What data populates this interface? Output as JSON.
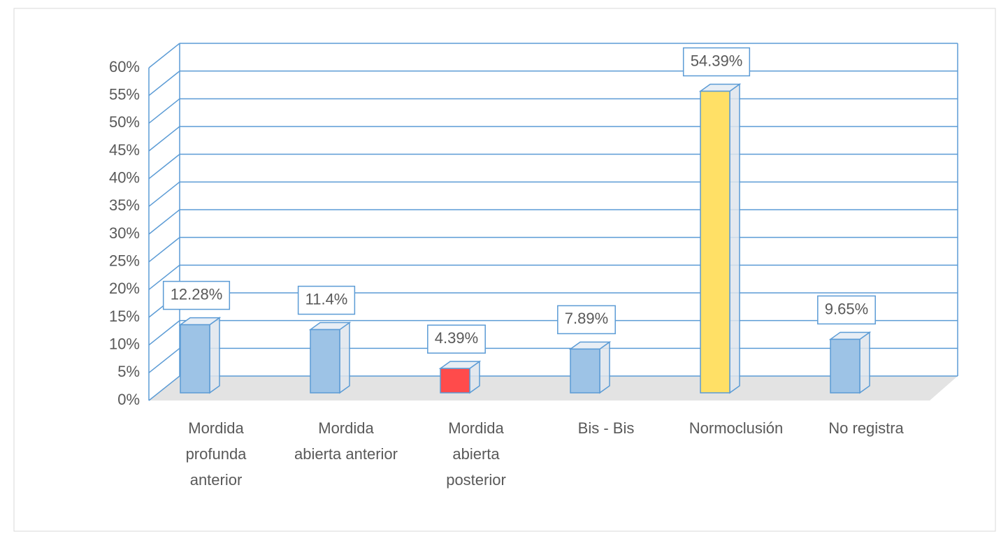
{
  "chart_data": {
    "type": "bar3d",
    "categories": [
      "Mordida profunda anterior",
      "Mordida abierta anterior",
      "Mordida abierta posterior",
      "Bis - Bis",
      "Normoclusión",
      "No registra"
    ],
    "values": [
      12.28,
      11.4,
      4.39,
      7.89,
      54.39,
      9.65
    ],
    "value_labels": [
      "12.28%",
      "11.4%",
      "4.39%",
      "7.89%",
      "54.39%",
      "9.65%"
    ],
    "colors": [
      "#9dc3e6",
      "#9dc3e6",
      "#ff4b4b",
      "#9dc3e6",
      "#ffe066",
      "#9dc3e6"
    ],
    "ylim": [
      0,
      60
    ],
    "yticks": [
      {
        "value": 0,
        "label": "0%"
      },
      {
        "value": 5,
        "label": "5%"
      },
      {
        "value": 10,
        "label": "10%"
      },
      {
        "value": 15,
        "label": "15%"
      },
      {
        "value": 20,
        "label": "20%"
      },
      {
        "value": 25,
        "label": "25%"
      },
      {
        "value": 30,
        "label": "30%"
      },
      {
        "value": 35,
        "label": "35%"
      },
      {
        "value": 40,
        "label": "40%"
      },
      {
        "value": 45,
        "label": "45%"
      },
      {
        "value": 50,
        "label": "50%"
      },
      {
        "value": 55,
        "label": "55%"
      },
      {
        "value": 60,
        "label": "60%"
      }
    ],
    "grid": true
  }
}
